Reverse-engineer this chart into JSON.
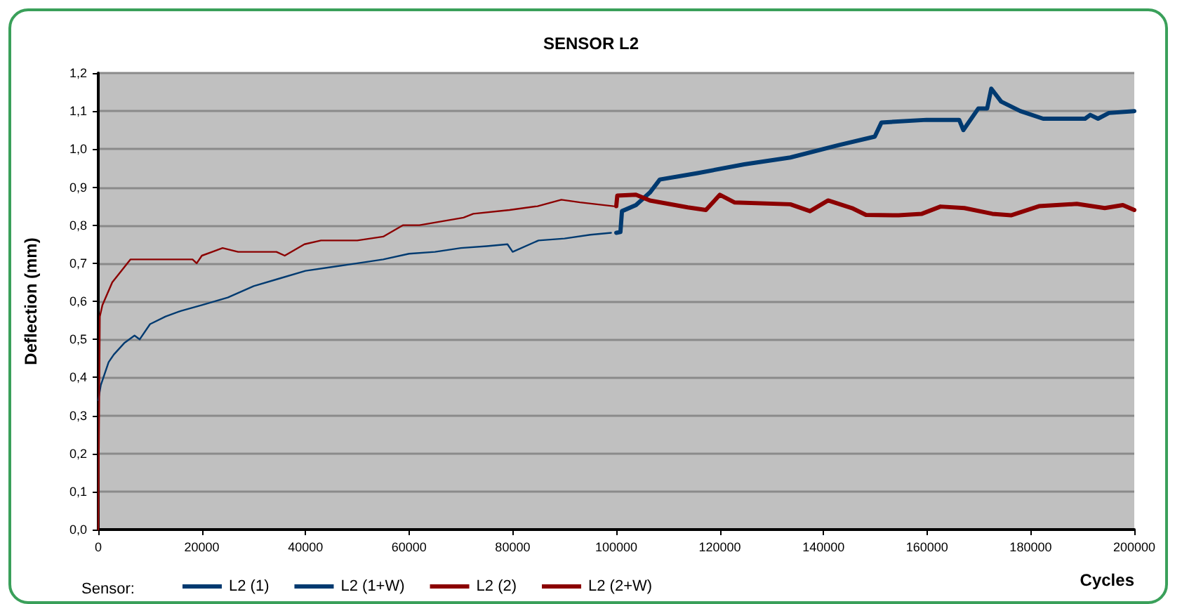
{
  "chart_data": {
    "type": "line",
    "title": "SENSOR L2",
    "xlabel": "Cycles",
    "ylabel": "Deflection (mm)",
    "legend_title": "Sensor:",
    "xlim": [
      0,
      200000
    ],
    "xticks": [
      0,
      20000,
      40000,
      60000,
      80000,
      100000,
      120000,
      140000,
      160000,
      180000,
      200000
    ],
    "ylim": [
      0,
      1.2
    ],
    "yticks": [
      {
        "value": 0,
        "label": "0,0"
      },
      {
        "value": 0.1,
        "label": "0,1"
      },
      {
        "value": 0.2,
        "label": "0,2"
      },
      {
        "value": 0.3,
        "label": "0,3"
      },
      {
        "value": 0.4,
        "label": "0,4"
      },
      {
        "value": 0.5,
        "label": "0,5"
      },
      {
        "value": 0.6,
        "label": "0,6"
      },
      {
        "value": 0.7,
        "label": "0,7"
      },
      {
        "value": 0.8,
        "label": "0,8"
      },
      {
        "value": 0.9,
        "label": "0,9"
      },
      {
        "value": 1.0,
        "label": "1,0"
      },
      {
        "value": 1.1,
        "label": "1,1"
      },
      {
        "value": 1.2,
        "label": "1,2"
      }
    ],
    "grid": "y",
    "legend": "bottom left",
    "marker": "none",
    "line_style": "solid",
    "series": [
      {
        "name": "L2 (1)",
        "color": "#003a70",
        "x": [
          0,
          500,
          1000,
          2000,
          3000,
          5000,
          7000,
          8000,
          10000,
          13000,
          16000,
          20000,
          25000,
          30000,
          35000,
          40000,
          45000,
          50000,
          55000,
          60000,
          65000,
          70000,
          75000,
          79000,
          80000,
          85000,
          90000,
          95000,
          99000
        ],
        "values": [
          0.34,
          0.38,
          0.4,
          0.44,
          0.46,
          0.49,
          0.51,
          0.5,
          0.54,
          0.56,
          0.575,
          0.59,
          0.61,
          0.64,
          0.66,
          0.68,
          0.69,
          0.7,
          0.71,
          0.725,
          0.73,
          0.74,
          0.745,
          0.75,
          0.73,
          0.76,
          0.765,
          0.775,
          0.78
        ]
      },
      {
        "name": "L2 (1+W)",
        "color": "#003a70",
        "x": [
          100000,
          100800,
          101100,
          103800,
          106500,
          108400,
          115700,
          124700,
          133600,
          142800,
          149900,
          151200,
          159900,
          166200,
          167000,
          169900,
          171600,
          172400,
          174300,
          178000,
          182400,
          190500,
          191500,
          193000,
          195100,
          200000
        ],
        "values": [
          0.78,
          0.782,
          0.837,
          0.853,
          0.886,
          0.92,
          0.937,
          0.96,
          0.978,
          1.01,
          1.033,
          1.07,
          1.077,
          1.077,
          1.05,
          1.107,
          1.107,
          1.159,
          1.125,
          1.1,
          1.08,
          1.08,
          1.09,
          1.08,
          1.095,
          1.1
        ]
      },
      {
        "name": "L2 (2)",
        "color": "#8b0000",
        "x": [
          0,
          300,
          800,
          2700,
          6200,
          18200,
          19000,
          20000,
          22000,
          24000,
          27000,
          34400,
          36000,
          39800,
          43000,
          50000,
          55000,
          58800,
          62000,
          70500,
          72400,
          79400,
          84800,
          89400,
          93000,
          99500
        ],
        "values": [
          0,
          0.56,
          0.59,
          0.65,
          0.71,
          0.71,
          0.7,
          0.72,
          0.73,
          0.74,
          0.73,
          0.73,
          0.72,
          0.75,
          0.76,
          0.76,
          0.77,
          0.8,
          0.8,
          0.82,
          0.83,
          0.84,
          0.85,
          0.867,
          0.86,
          0.85
        ]
      },
      {
        "name": "L2 (2+W)",
        "color": "#8b0000",
        "x": [
          100000,
          100200,
          103800,
          106500,
          113800,
          117300,
          120000,
          122800,
          133600,
          137400,
          140900,
          145500,
          148200,
          154500,
          159000,
          162600,
          167200,
          172600,
          176200,
          181600,
          188900,
          194300,
          197800,
          200000
        ],
        "values": [
          0.85,
          0.878,
          0.88,
          0.865,
          0.847,
          0.84,
          0.88,
          0.86,
          0.855,
          0.837,
          0.865,
          0.845,
          0.827,
          0.826,
          0.83,
          0.849,
          0.845,
          0.83,
          0.826,
          0.85,
          0.856,
          0.845,
          0.853,
          0.84
        ]
      }
    ]
  }
}
